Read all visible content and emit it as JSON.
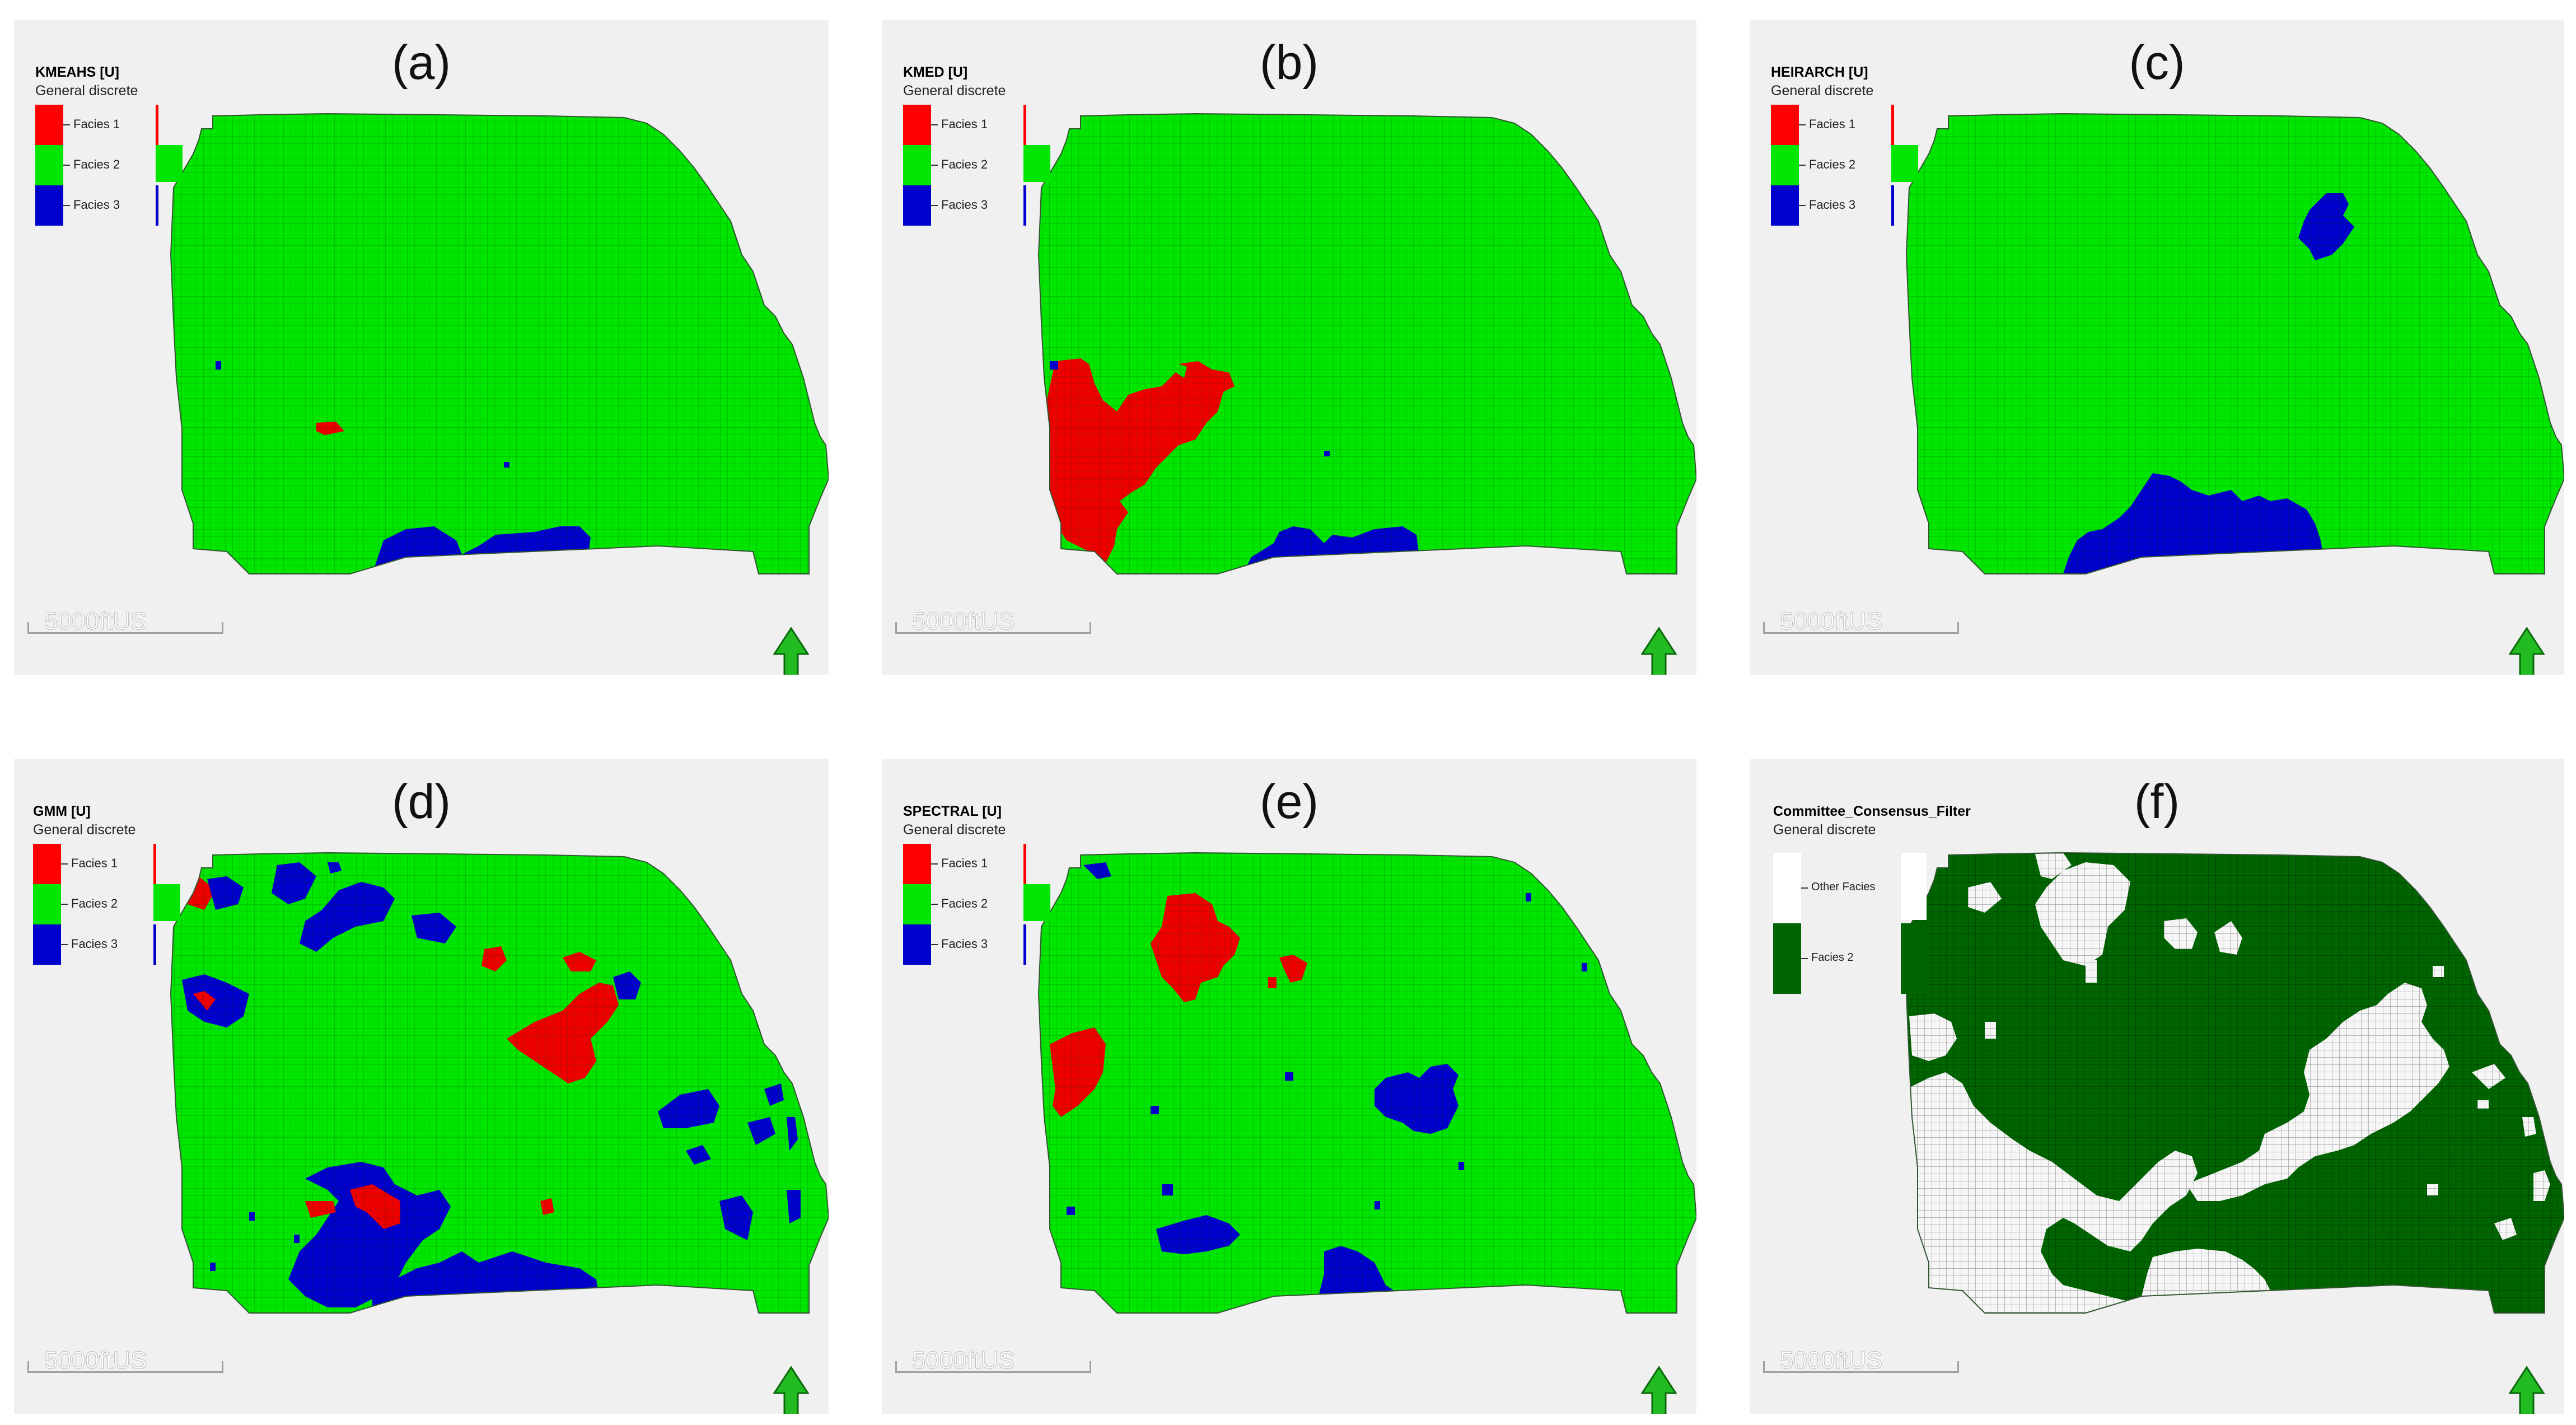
{
  "panels": [
    {
      "letter": "(a)",
      "property_name": "KMEAHS [U]",
      "template": "General discrete",
      "legend": [
        {
          "label": "Facies 1",
          "color": "#ff0000"
        },
        {
          "label": "Facies 2",
          "color": "#00e600"
        },
        {
          "label": "Facies 3",
          "color": "#0000cc"
        }
      ],
      "scale_label": "5000ftUS",
      "background_color": "#00e600"
    },
    {
      "letter": "(b)",
      "property_name": "KMED [U]",
      "template": "General discrete",
      "legend": [
        {
          "label": "Facies 1",
          "color": "#ff0000"
        },
        {
          "label": "Facies 2",
          "color": "#00e600"
        },
        {
          "label": "Facies 3",
          "color": "#0000cc"
        }
      ],
      "scale_label": "5000ftUS",
      "background_color": "#00e600"
    },
    {
      "letter": "(c)",
      "property_name": "HEIRARCH [U]",
      "template": "General discrete",
      "legend": [
        {
          "label": "Facies 1",
          "color": "#ff0000"
        },
        {
          "label": "Facies 2",
          "color": "#00e600"
        },
        {
          "label": "Facies 3",
          "color": "#0000cc"
        }
      ],
      "scale_label": "5000ftUS",
      "background_color": "#00e600"
    },
    {
      "letter": "(d)",
      "property_name": "GMM [U]",
      "template": "General discrete",
      "legend": [
        {
          "label": "Facies 1",
          "color": "#ff0000"
        },
        {
          "label": "Facies 2",
          "color": "#00e600"
        },
        {
          "label": "Facies 3",
          "color": "#0000cc"
        }
      ],
      "scale_label": "5000ftUS",
      "background_color": "#00e600"
    },
    {
      "letter": "(e)",
      "property_name": "SPECTRAL [U]",
      "template": "General discrete",
      "legend": [
        {
          "label": "Facies 1",
          "color": "#ff0000"
        },
        {
          "label": "Facies 2",
          "color": "#00e600"
        },
        {
          "label": "Facies 3",
          "color": "#0000cc"
        }
      ],
      "scale_label": "5000ftUS",
      "background_color": "#00e600"
    },
    {
      "letter": "(f)",
      "property_name": "Committee_Consensus_Filter",
      "template": "General discrete",
      "legend": [
        {
          "label": "Other Facies",
          "color": "#ffffff"
        },
        {
          "label": "Facies 2",
          "color": "#006400"
        }
      ],
      "scale_label": "5000ftUS",
      "background_color": "#006400"
    }
  ],
  "north_arrow_color": "#22bb22"
}
